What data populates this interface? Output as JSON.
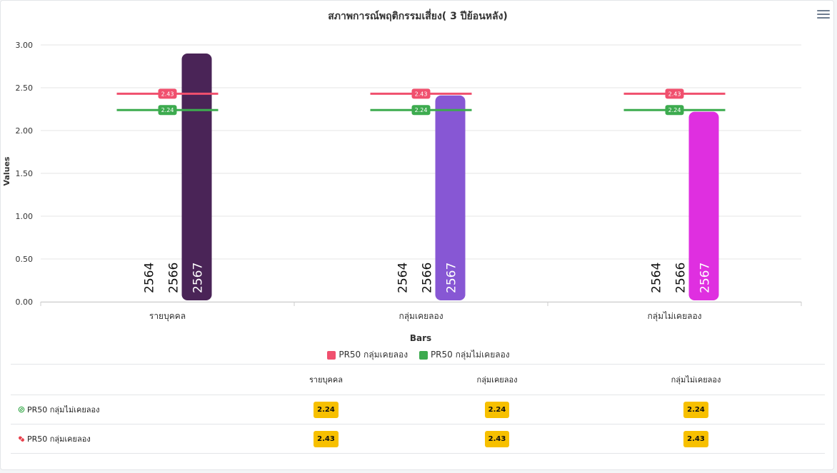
{
  "chart_data": {
    "type": "bar",
    "title": "สภาพการณ์พฤติกรรมเสี่ยง( 3 ปีย้อนหลัง)",
    "xlabel": "Bars",
    "ylabel": "Values",
    "ylim": [
      0,
      3
    ],
    "yticks": [
      "0.00",
      "0.50",
      "1.00",
      "1.50",
      "2.00",
      "2.50",
      "3.00"
    ],
    "categories": [
      "รายบุคคล",
      "กลุ่มเคยลอง",
      "กลุ่มไม่เคยลอง"
    ],
    "series": [
      {
        "name": "2564",
        "values": [
          0,
          0,
          0
        ]
      },
      {
        "name": "2566",
        "values": [
          0,
          0,
          0
        ]
      },
      {
        "name": "2567",
        "values": [
          2.9,
          2.41,
          2.22
        ],
        "colors": [
          "#4a2457",
          "#8757d4",
          "#df2fe0"
        ]
      }
    ],
    "reference_lines": [
      {
        "name": "PR50 กลุ่มเคยลอง",
        "value": 2.43,
        "label": "2.43",
        "color": "#f0506e"
      },
      {
        "name": "PR50 กลุ่มไม่เคยลอง",
        "value": 2.24,
        "label": "2.24",
        "color": "#3dab4f"
      }
    ],
    "grid": true,
    "legend": "bottom"
  },
  "legend": {
    "items": [
      {
        "label": "PR50 กลุ่มเคยลอง",
        "color": "#f0506e"
      },
      {
        "label": "PR50 กลุ่มไม่เคยลอง",
        "color": "#3dab4f"
      }
    ]
  },
  "table": {
    "headers": [
      "",
      "รายบุคคล",
      "กลุ่มเคยลอง",
      "กลุ่มไม่เคยลอง"
    ],
    "rows": [
      {
        "label": "PR50 กลุ่มไม่เคยลอง",
        "icon": "no-drug-icon",
        "values": [
          "2.24",
          "2.24",
          "2.24"
        ]
      },
      {
        "label": "PR50 กลุ่มเคยลอง",
        "icon": "pill-icon",
        "values": [
          "2.43",
          "2.43",
          "2.43"
        ]
      }
    ]
  }
}
